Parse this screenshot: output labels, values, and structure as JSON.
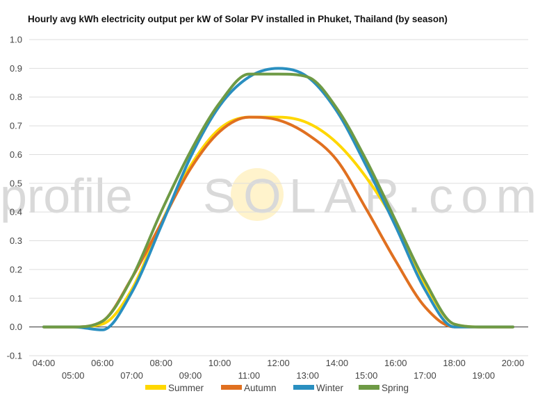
{
  "chart_data": {
    "type": "line",
    "title": "Hourly avg kWh electricity output per kW of Solar PV installed in Phuket, Thailand (by season)",
    "xlabel": "",
    "ylabel": "",
    "ylim": [
      -0.1,
      1.0
    ],
    "yticks": [
      -0.1,
      0.0,
      0.1,
      0.2,
      0.3,
      0.4,
      0.5,
      0.6,
      0.7,
      0.8,
      0.9,
      1.0
    ],
    "ytick_labels": [
      "-0.1",
      "0.0",
      "0.1",
      "0.2",
      "0.3",
      "0.4",
      "0.5",
      "0.6",
      "0.7",
      "0.8",
      "0.9",
      "1.0"
    ],
    "x": [
      4,
      5,
      6,
      7,
      8,
      9,
      10,
      11,
      12,
      13,
      14,
      15,
      16,
      17,
      18,
      19,
      20
    ],
    "xlim": [
      4,
      20
    ],
    "categories": [
      "04:00",
      "05:00",
      "06:00",
      "07:00",
      "08:00",
      "09:00",
      "10:00",
      "11:00",
      "12:00",
      "13:00",
      "14:00",
      "15:00",
      "16:00",
      "17:00",
      "18:00",
      "19:00",
      "20:00"
    ],
    "grid": true,
    "legend_position": "bottom",
    "series": [
      {
        "name": "Summer",
        "color": "#FFD700",
        "values": [
          0.0,
          0.0,
          0.01,
          0.13,
          0.36,
          0.56,
          0.69,
          0.73,
          0.73,
          0.71,
          0.64,
          0.52,
          0.36,
          0.15,
          0.01,
          0.0,
          0.0
        ]
      },
      {
        "name": "Autumn",
        "color": "#E07020",
        "values": [
          0.0,
          0.0,
          0.02,
          0.17,
          0.36,
          0.55,
          0.68,
          0.73,
          0.72,
          0.67,
          0.58,
          0.41,
          0.23,
          0.07,
          0.0,
          0.0,
          0.0
        ]
      },
      {
        "name": "Winter",
        "color": "#2A8FC0",
        "values": [
          0.0,
          0.0,
          -0.01,
          0.12,
          0.35,
          0.59,
          0.77,
          0.87,
          0.9,
          0.87,
          0.75,
          0.56,
          0.35,
          0.13,
          0.0,
          0.0,
          0.0
        ]
      },
      {
        "name": "Spring",
        "color": "#6E9A45",
        "values": [
          0.0,
          0.0,
          0.02,
          0.17,
          0.4,
          0.61,
          0.78,
          0.88,
          0.88,
          0.87,
          0.76,
          0.58,
          0.37,
          0.16,
          0.01,
          0.0,
          0.0
        ]
      }
    ]
  },
  "watermark": {
    "text_left": "profile",
    "text_right": "SOLAR.com",
    "sun_color": "#FFF3CC"
  }
}
